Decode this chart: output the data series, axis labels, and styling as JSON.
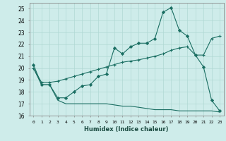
{
  "xlabel": "Humidex (Indice chaleur)",
  "background_color": "#ceecea",
  "grid_color": "#b0d8d4",
  "line_color": "#1a6e62",
  "xlim": [
    -0.5,
    23.5
  ],
  "ylim": [
    16,
    25.5
  ],
  "x_ticks": [
    0,
    1,
    2,
    3,
    4,
    5,
    6,
    7,
    8,
    9,
    10,
    11,
    12,
    13,
    14,
    15,
    16,
    17,
    18,
    19,
    20,
    21,
    22,
    23
  ],
  "y_ticks": [
    16,
    17,
    18,
    19,
    20,
    21,
    22,
    23,
    24,
    25
  ],
  "line1_x": [
    0,
    1,
    2,
    3,
    4,
    5,
    6,
    7,
    8,
    9,
    10,
    11,
    12,
    13,
    14,
    15,
    16,
    17,
    18,
    19,
    20,
    21,
    22,
    23
  ],
  "line1_y": [
    20.3,
    18.6,
    18.6,
    17.5,
    17.5,
    18.0,
    18.5,
    18.6,
    19.3,
    19.5,
    21.7,
    21.2,
    21.8,
    22.1,
    22.1,
    22.5,
    24.7,
    25.1,
    23.2,
    22.7,
    21.1,
    20.1,
    17.3,
    16.4
  ],
  "line2_x": [
    0,
    1,
    2,
    3,
    4,
    5,
    6,
    7,
    8,
    9,
    10,
    11,
    12,
    13,
    14,
    15,
    16,
    17,
    18,
    19,
    20,
    21,
    22,
    23
  ],
  "line2_y": [
    20.0,
    18.8,
    18.8,
    18.9,
    19.1,
    19.3,
    19.5,
    19.7,
    19.9,
    20.1,
    20.3,
    20.5,
    20.6,
    20.7,
    20.85,
    21.0,
    21.2,
    21.5,
    21.7,
    21.8,
    21.1,
    21.1,
    22.5,
    22.7
  ],
  "line3_x": [
    0,
    1,
    2,
    3,
    4,
    5,
    6,
    7,
    8,
    9,
    10,
    11,
    12,
    13,
    14,
    15,
    16,
    17,
    18,
    19,
    20,
    21,
    22,
    23
  ],
  "line3_y": [
    20.0,
    18.6,
    18.6,
    17.3,
    17.0,
    17.0,
    17.0,
    17.0,
    17.0,
    17.0,
    16.9,
    16.8,
    16.8,
    16.7,
    16.6,
    16.5,
    16.5,
    16.5,
    16.4,
    16.4,
    16.4,
    16.4,
    16.4,
    16.3
  ]
}
